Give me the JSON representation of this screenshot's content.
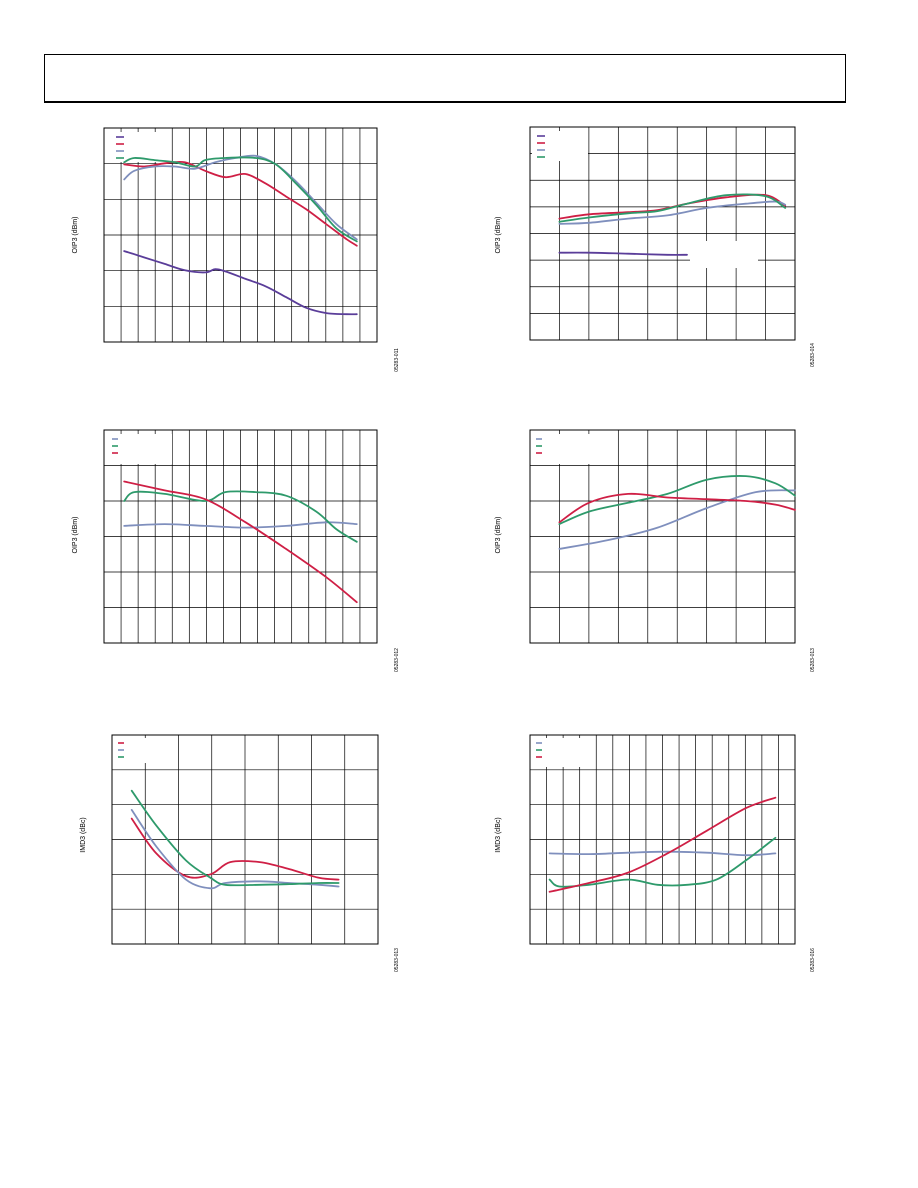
{
  "page": {
    "colors": {
      "purple": "#5a3d99",
      "red": "#cf1f45",
      "blue": "#7f8fbd",
      "green": "#2e9a6b",
      "grid": "#000000"
    }
  },
  "chart_data": [
    {
      "type": "line",
      "ylabel": "OIP3 (dBm)",
      "figure_id": "05283-011",
      "x": [
        0,
        1,
        2,
        3,
        4,
        5,
        6,
        7,
        8,
        9,
        10,
        11,
        12,
        13,
        14,
        15,
        16,
        17,
        18,
        19,
        20,
        21,
        22,
        23,
        24,
        25,
        26,
        27,
        28,
        29,
        30,
        31,
        32,
        33,
        34,
        35,
        36,
        37,
        38,
        39,
        40,
        41,
        42,
        43,
        44,
        45,
        46,
        47,
        48,
        49,
        50,
        51,
        52,
        53,
        54,
        55,
        56,
        57,
        58,
        59,
        60,
        61,
        62,
        63,
        64,
        65,
        66,
        67,
        68,
        69,
        70,
        71,
        72,
        73,
        74,
        75,
        76,
        77,
        78,
        79,
        80,
        81,
        82,
        83,
        84,
        85,
        86,
        87,
        88,
        89,
        90,
        91,
        92,
        93,
        94,
        95,
        96,
        97,
        98,
        99,
        100,
        101,
        102,
        103,
        104,
        105,
        106,
        107,
        108,
        109,
        110,
        111,
        112,
        113,
        114,
        115,
        116,
        117,
        118,
        119,
        120,
        121,
        122,
        123,
        124,
        125,
        126,
        127,
        128,
        129,
        130,
        131,
        132,
        133,
        134,
        135,
        136,
        137,
        138,
        139,
        140,
        141,
        142,
        143,
        144,
        145,
        146,
        147,
        148,
        149,
        150,
        151,
        152,
        153,
        154,
        155,
        156,
        157,
        158,
        159,
        160,
        161,
        162,
        163,
        164,
        165,
        166,
        167,
        168,
        169,
        170,
        171,
        172,
        173,
        174,
        175,
        176,
        177,
        178,
        179,
        180,
        181,
        182,
        183,
        184,
        185,
        186,
        187,
        188,
        189,
        190,
        191,
        192,
        193,
        194,
        195,
        196,
        197,
        198,
        199,
        200,
        201,
        202,
        203,
        204,
        205,
        206,
        207,
        208,
        209,
        210,
        211,
        212,
        213,
        214,
        215,
        216,
        217,
        218,
        219,
        220,
        221,
        222,
        223,
        224,
        225,
        226,
        227,
        228,
        229,
        230,
        231,
        232,
        233,
        234,
        235,
        236,
        237,
        238,
        239,
        240,
        241,
        242,
        243,
        244,
        245,
        246,
        247,
        248,
        249,
        250,
        251,
        252,
        253,
        254,
        255,
        256,
        257,
        258,
        259,
        260,
        261,
        262,
        263,
        264,
        265,
        266,
        267,
        268,
        269,
        270
      ],
      "xrange": [
        0,
        270
      ],
      "yrange": [
        0,
        10
      ],
      "xdiv": 16,
      "ydiv": 6,
      "series": [
        {
          "color": "purple",
          "x": [
            20,
            40,
            60,
            80,
            100,
            110,
            120,
            140,
            160,
            180,
            200,
            220,
            240,
            250
          ],
          "y": [
            4.25,
            3.95,
            3.65,
            3.35,
            3.25,
            3.4,
            3.3,
            2.95,
            2.6,
            2.1,
            1.6,
            1.35,
            1.3,
            1.3
          ]
        },
        {
          "color": "red",
          "x": [
            20,
            40,
            60,
            80,
            100,
            120,
            140,
            160,
            180,
            200,
            220,
            240,
            250
          ],
          "y": [
            8.3,
            8.2,
            8.35,
            8.4,
            8.0,
            7.7,
            7.85,
            7.4,
            6.8,
            6.2,
            5.5,
            4.8,
            4.5
          ]
        },
        {
          "color": "blue",
          "x": [
            20,
            30,
            50,
            70,
            90,
            110,
            130,
            150,
            170,
            190,
            210,
            230,
            250
          ],
          "y": [
            7.6,
            8.0,
            8.2,
            8.2,
            8.1,
            8.4,
            8.6,
            8.7,
            8.3,
            7.5,
            6.5,
            5.5,
            4.8
          ]
        },
        {
          "color": "green",
          "x": [
            20,
            30,
            50,
            70,
            90,
            100,
            120,
            150,
            170,
            190,
            210,
            230,
            250
          ],
          "y": [
            8.4,
            8.6,
            8.5,
            8.4,
            8.2,
            8.5,
            8.6,
            8.6,
            8.3,
            7.4,
            6.4,
            5.3,
            4.7
          ]
        }
      ]
    },
    {
      "type": "line",
      "ylabel": "OIP3 (dBm)",
      "figure_id": "05283-014",
      "xrange": [
        0,
        270
      ],
      "yrange": [
        0,
        10
      ],
      "xdiv": 9,
      "ydiv": 8,
      "series": [
        {
          "color": "purple",
          "x": [
            30,
            60,
            100,
            140,
            160
          ],
          "y": [
            4.1,
            4.1,
            4.05,
            4.0,
            4.0
          ]
        },
        {
          "color": "red",
          "x": [
            30,
            60,
            100,
            130,
            160,
            200,
            240,
            260
          ],
          "y": [
            5.7,
            5.9,
            6.0,
            6.1,
            6.4,
            6.7,
            6.8,
            6.3
          ]
        },
        {
          "color": "blue",
          "x": [
            30,
            60,
            100,
            140,
            180,
            220,
            250,
            260
          ],
          "y": [
            5.45,
            5.5,
            5.7,
            5.85,
            6.2,
            6.4,
            6.5,
            6.35
          ]
        },
        {
          "color": "green",
          "x": [
            30,
            60,
            100,
            130,
            160,
            200,
            240,
            260
          ],
          "y": [
            5.55,
            5.75,
            5.95,
            6.05,
            6.4,
            6.8,
            6.75,
            6.2
          ]
        }
      ]
    },
    {
      "type": "line",
      "ylabel": "OIP3 (dBm)",
      "figure_id": "05283-012",
      "xrange": [
        0,
        270
      ],
      "yrange": [
        0,
        6
      ],
      "xdiv": 16,
      "ydiv": 6,
      "series": [
        {
          "color": "blue",
          "x": [
            20,
            60,
            100,
            140,
            180,
            220,
            250
          ],
          "y": [
            3.3,
            3.35,
            3.3,
            3.25,
            3.3,
            3.4,
            3.35
          ]
        },
        {
          "color": "green",
          "x": [
            20,
            30,
            60,
            100,
            120,
            150,
            180,
            210,
            230,
            250
          ],
          "y": [
            4.0,
            4.25,
            4.2,
            4.0,
            4.25,
            4.25,
            4.15,
            3.7,
            3.2,
            2.85
          ]
        },
        {
          "color": "red",
          "x": [
            20,
            60,
            100,
            140,
            180,
            220,
            250
          ],
          "y": [
            4.55,
            4.3,
            4.05,
            3.4,
            2.65,
            1.85,
            1.15
          ]
        }
      ]
    },
    {
      "type": "line",
      "ylabel": "OIP3 (dBm)",
      "figure_id": "05283-013",
      "xrange": [
        0,
        270
      ],
      "yrange": [
        0,
        6
      ],
      "xdiv": 9,
      "ydiv": 6,
      "series": [
        {
          "color": "blue",
          "x": [
            30,
            80,
            130,
            180,
            230,
            270
          ],
          "y": [
            2.65,
            2.9,
            3.25,
            3.8,
            4.25,
            4.3
          ]
        },
        {
          "color": "green",
          "x": [
            30,
            60,
            100,
            140,
            180,
            220,
            250,
            270
          ],
          "y": [
            3.35,
            3.7,
            3.95,
            4.2,
            4.6,
            4.7,
            4.5,
            4.15
          ]
        },
        {
          "color": "red",
          "x": [
            30,
            60,
            100,
            140,
            180,
            220,
            250,
            270
          ],
          "y": [
            3.4,
            3.95,
            4.2,
            4.1,
            4.05,
            4.0,
            3.9,
            3.75
          ]
        }
      ]
    },
    {
      "type": "line",
      "ylabel": "IMD3 (dBc)",
      "figure_id": "05283-013",
      "xrange": [
        0,
        270
      ],
      "yrange": [
        0,
        6
      ],
      "xdiv": 8,
      "ydiv": 6,
      "series": [
        {
          "color": "red",
          "x": [
            20,
            45,
            75,
            100,
            120,
            150,
            180,
            210,
            230
          ],
          "y": [
            3.6,
            2.6,
            1.95,
            2.0,
            2.35,
            2.35,
            2.15,
            1.9,
            1.85
          ]
        },
        {
          "color": "blue",
          "x": [
            20,
            45,
            75,
            100,
            115,
            150,
            180,
            210,
            230
          ],
          "y": [
            3.85,
            2.8,
            1.85,
            1.6,
            1.75,
            1.8,
            1.75,
            1.7,
            1.65
          ]
        },
        {
          "color": "green",
          "x": [
            20,
            45,
            75,
            100,
            115,
            150,
            180,
            210,
            230
          ],
          "y": [
            4.4,
            3.4,
            2.4,
            1.9,
            1.7,
            1.7,
            1.72,
            1.75,
            1.75
          ]
        }
      ]
    },
    {
      "type": "line",
      "ylabel": "IMD3 (dBc)",
      "figure_id": "05283-016",
      "xrange": [
        0,
        270
      ],
      "yrange": [
        0,
        6
      ],
      "xdiv": 16,
      "ydiv": 6,
      "series": [
        {
          "color": "blue",
          "x": [
            20,
            60,
            100,
            140,
            180,
            220,
            250
          ],
          "y": [
            2.6,
            2.58,
            2.62,
            2.65,
            2.62,
            2.55,
            2.6
          ]
        },
        {
          "color": "green",
          "x": [
            20,
            30,
            60,
            100,
            130,
            160,
            190,
            220,
            250
          ],
          "y": [
            1.85,
            1.65,
            1.7,
            1.85,
            1.7,
            1.7,
            1.85,
            2.4,
            3.05
          ]
        },
        {
          "color": "red",
          "x": [
            20,
            60,
            100,
            140,
            180,
            220,
            250
          ],
          "y": [
            1.5,
            1.75,
            2.05,
            2.6,
            3.25,
            3.9,
            4.2
          ]
        }
      ]
    }
  ]
}
